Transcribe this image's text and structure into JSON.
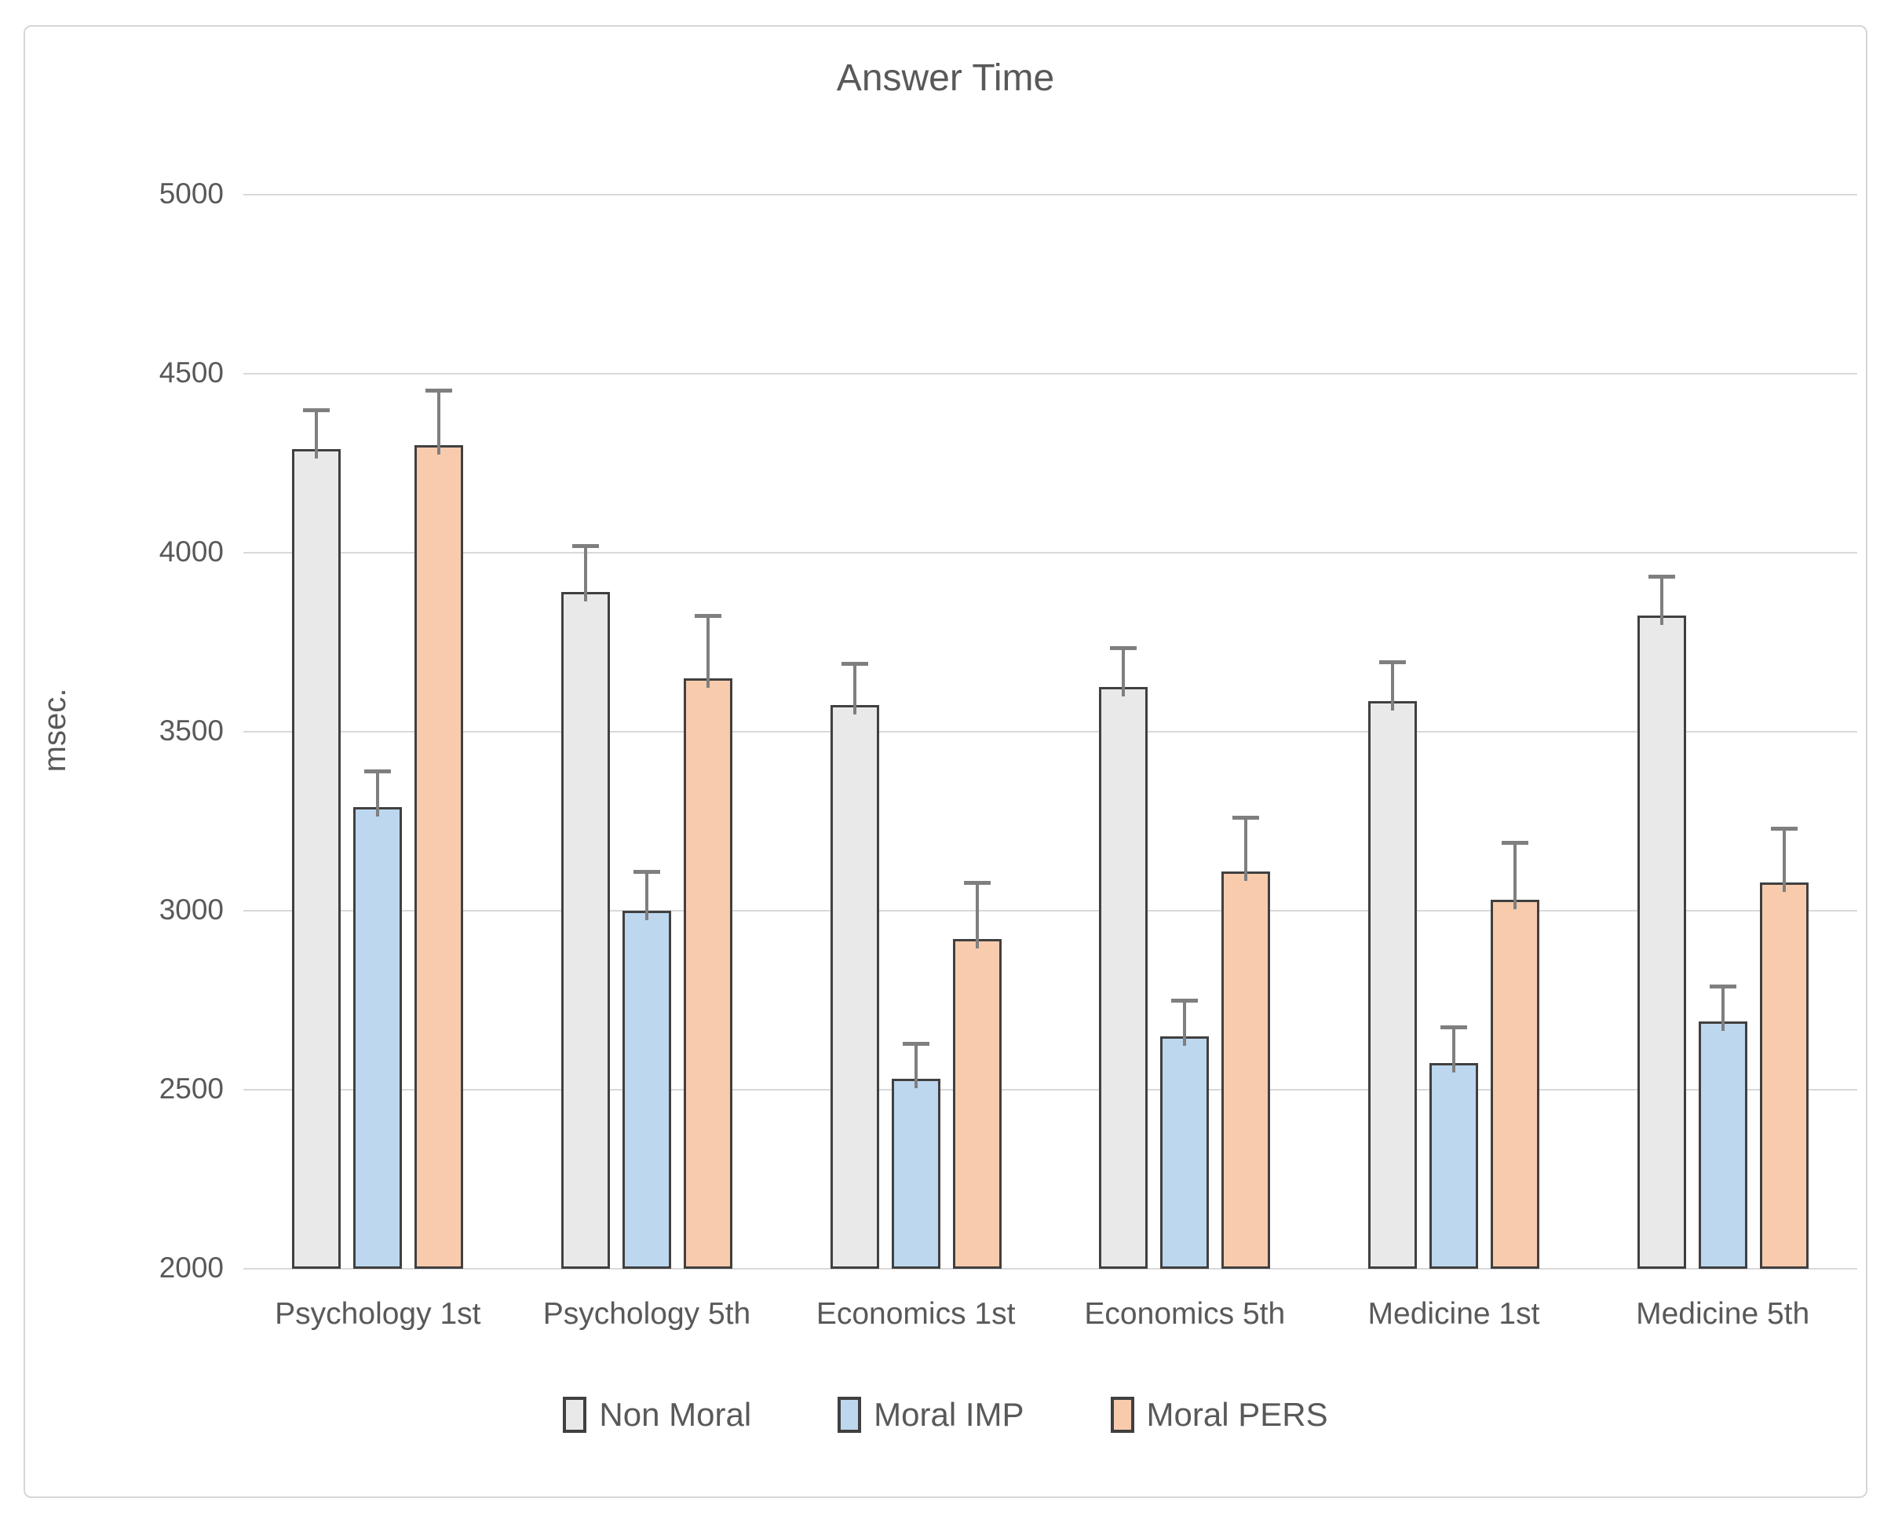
{
  "chart_data": {
    "type": "bar",
    "title": "Answer Time",
    "ylabel": "msec.",
    "xlabel": "",
    "ylim": [
      2000,
      5000
    ],
    "ytick_step": 500,
    "yticks": [
      2000,
      2500,
      3000,
      3500,
      4000,
      4500,
      5000
    ],
    "grid": "horizontal",
    "legend_position": "bottom",
    "categories": [
      "Psychology 1st",
      "Psychology 5th",
      "Economics 1st",
      "Economics 5th",
      "Medicine 1st",
      "Medicine 5th"
    ],
    "series": [
      {
        "name": "Non Moral",
        "color": "#e9e9e9",
        "values": [
          4290,
          3890,
          3575,
          3625,
          3585,
          3825
        ],
        "errors": [
          110,
          130,
          115,
          110,
          110,
          110
        ]
      },
      {
        "name": "Moral IMP",
        "color": "#bdd7ee",
        "values": [
          3290,
          3000,
          2530,
          2650,
          2575,
          2690
        ],
        "errors": [
          100,
          110,
          100,
          100,
          100,
          100
        ]
      },
      {
        "name": "Moral PERS",
        "color": "#f8cbad",
        "values": [
          4300,
          3650,
          2920,
          3110,
          3030,
          3080
        ],
        "errors": [
          155,
          175,
          160,
          150,
          160,
          150
        ]
      }
    ],
    "bar_outline_color": "#404040",
    "error_bar_color": "#7f7f7f",
    "gridline_color": "#d9d9d9",
    "text_color": "#595959"
  }
}
